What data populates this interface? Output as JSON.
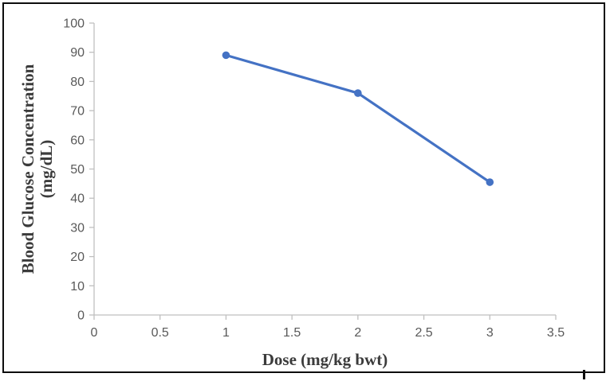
{
  "figure": {
    "background_color": "#ffffff",
    "border_color": "#0d0d0d"
  },
  "chart_data": {
    "type": "line",
    "title": "",
    "xlabel": "Dose (mg/kg bwt)",
    "ylabel": "Blood Glucose Concentration (mg/dL)",
    "ylabel_lines": [
      "Blood Glucose Concentration",
      "(mg/dL)"
    ],
    "xlim": [
      0,
      3.5
    ],
    "ylim": [
      0,
      100
    ],
    "x_ticks": [
      "0",
      "0.5",
      "1",
      "1.5",
      "2",
      "2.5",
      "3",
      "3.5"
    ],
    "y_ticks": [
      "0",
      "10",
      "20",
      "30",
      "40",
      "50",
      "60",
      "70",
      "80",
      "90",
      "100"
    ],
    "grid": false,
    "legend": false,
    "series": [
      {
        "x": [
          1,
          2,
          3
        ],
        "y": [
          89,
          76,
          45.5
        ],
        "color": "#4472c4",
        "marker": "circle"
      }
    ],
    "axis_line_color": "#bfbfbf",
    "tick_label_color": "#595959",
    "axis_title_color": "#3b3b3b"
  }
}
